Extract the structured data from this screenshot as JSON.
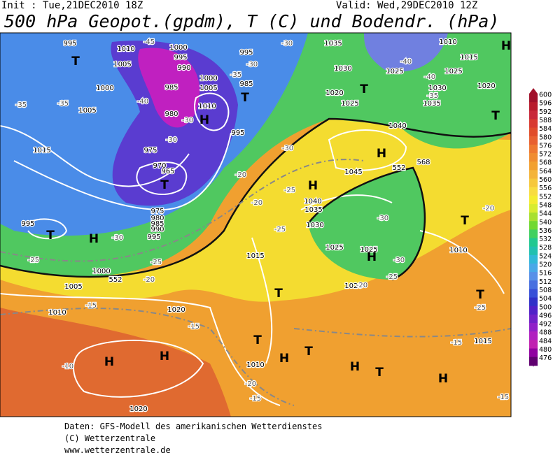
{
  "header": {
    "init": "Init : Tue,21DEC2010 18Z",
    "valid": "Valid: Wed,29DEC2010 12Z",
    "title": "500 hPa Geopot.(gpdm), T (C) und Bodendr. (hPa)"
  },
  "colorbar": {
    "labels": [
      "600",
      "596",
      "592",
      "588",
      "584",
      "580",
      "576",
      "572",
      "568",
      "564",
      "560",
      "556",
      "552",
      "548",
      "544",
      "540",
      "536",
      "532",
      "528",
      "524",
      "520",
      "516",
      "512",
      "508",
      "504",
      "500",
      "496",
      "492",
      "488",
      "484",
      "480",
      "476"
    ],
    "colors": [
      "#a0102a",
      "#b81a2c",
      "#c8283a",
      "#d83a30",
      "#e04c2a",
      "#e86030",
      "#ee7830",
      "#f08c30",
      "#f2a030",
      "#f4b43a",
      "#f6c83c",
      "#f8dc40",
      "#f4ec30",
      "#d8ec30",
      "#a8e030",
      "#70d830",
      "#40d060",
      "#20c890",
      "#20c0b0",
      "#30b8d8",
      "#48a8e8",
      "#5890e8",
      "#4870e0",
      "#3850d8",
      "#3030c8",
      "#5020c8",
      "#7020c8",
      "#9020c8",
      "#b020c0",
      "#c020b0",
      "#9000a0",
      "#600070"
    ]
  },
  "map": {
    "labels": [
      "995",
      "1010",
      "1000",
      "995",
      "990",
      "1005",
      "1000",
      "1005",
      "985",
      "1000",
      "1005",
      "1010",
      "985",
      "995",
      "1035",
      "1030",
      "1025",
      "1020",
      "1025",
      "1030",
      "1035",
      "1040",
      "1045",
      "1040",
      "1035",
      "1030",
      "1025",
      "1025",
      "1015",
      "1020",
      "1010",
      "1015",
      "1020",
      "1015",
      "1010",
      "1025",
      "980",
      "975",
      "970",
      "965",
      "975",
      "980",
      "985",
      "990",
      "995",
      "995",
      "1015",
      "1000",
      "1005",
      "1010",
      "1020",
      "1010",
      "1020",
      "995",
      "T",
      "T",
      "H",
      "T",
      "T",
      "H",
      "T",
      "H",
      "H",
      "T",
      "T",
      "H",
      "T",
      "T",
      "T",
      "H",
      "T",
      "H",
      "H",
      "H",
      "T",
      "H",
      "H",
      "-45",
      "-40",
      "-35",
      "-30",
      "-25",
      "-25",
      "-20",
      "-15",
      "-15",
      "-10",
      "-20",
      "-15",
      "-30",
      "-35",
      "-30",
      "-30",
      "-25",
      "-20",
      "-20",
      "-25",
      "-30",
      "-30",
      "-25",
      "-20",
      "-20",
      "-25",
      "-15",
      "-40",
      "-40",
      "-35",
      "-35",
      "-30",
      "-30",
      "-15",
      "552",
      "552",
      "568"
    ]
  },
  "footer": {
    "lines": [
      "Daten: GFS-Modell des amerikanischen Wetterdienstes",
      "(C) Wetterzentrale",
      "www.wetterzentrale.de"
    ]
  }
}
